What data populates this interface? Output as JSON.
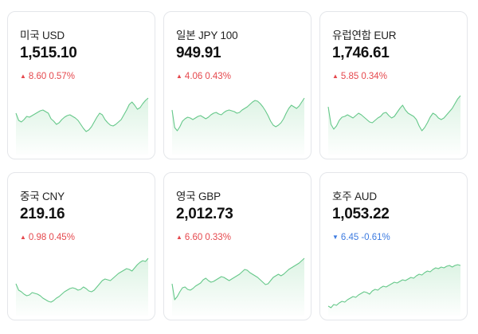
{
  "colors": {
    "up": "#e5484d",
    "down": "#3d7be0",
    "line": "#66c88a",
    "fill": "#d9f2e1"
  },
  "cards": [
    {
      "name": "미국 USD",
      "rate": "1,515.10",
      "direction": "up",
      "arrow_icon": "triangle-up-icon",
      "change": "8.60",
      "percent": "0.57%",
      "sparkline": [
        52,
        43,
        41,
        44,
        48,
        47,
        49,
        51,
        53,
        55,
        56,
        54,
        52,
        45,
        42,
        38,
        40,
        44,
        47,
        49,
        50,
        48,
        46,
        43,
        38,
        33,
        29,
        31,
        35,
        41,
        47,
        52,
        50,
        44,
        40,
        37,
        36,
        38,
        41,
        44,
        50,
        56,
        63,
        66,
        62,
        57,
        59,
        64,
        68,
        71
      ]
    },
    {
      "name": "일본 JPY 100",
      "rate": "949.91",
      "direction": "up",
      "arrow_icon": "triangle-up-icon",
      "change": "4.06",
      "percent": "0.43%",
      "sparkline": [
        56,
        34,
        30,
        35,
        42,
        45,
        47,
        46,
        44,
        46,
        48,
        49,
        47,
        45,
        47,
        50,
        52,
        53,
        51,
        50,
        53,
        55,
        56,
        55,
        54,
        52,
        53,
        56,
        58,
        60,
        63,
        66,
        68,
        67,
        64,
        60,
        55,
        49,
        42,
        37,
        35,
        37,
        40,
        45,
        52,
        58,
        62,
        60,
        58,
        61,
        66,
        71
      ]
    },
    {
      "name": "유럽연합 EUR",
      "rate": "1,746.61",
      "direction": "up",
      "arrow_icon": "triangle-up-icon",
      "change": "5.85",
      "percent": "0.34%",
      "sparkline": [
        60,
        38,
        32,
        36,
        43,
        47,
        48,
        50,
        48,
        46,
        49,
        52,
        50,
        47,
        44,
        41,
        40,
        43,
        46,
        48,
        52,
        53,
        49,
        46,
        48,
        53,
        58,
        62,
        56,
        52,
        50,
        48,
        44,
        36,
        30,
        34,
        40,
        47,
        52,
        50,
        46,
        44,
        46,
        50,
        54,
        58,
        64,
        70,
        74
      ]
    },
    {
      "name": "중국 CNY",
      "rate": "219.16",
      "direction": "up",
      "arrow_icon": "triangle-up-icon",
      "change": "0.98",
      "percent": "0.45%",
      "sparkline": [
        40,
        32,
        30,
        27,
        25,
        26,
        29,
        28,
        27,
        25,
        22,
        20,
        18,
        17,
        19,
        22,
        24,
        27,
        30,
        32,
        34,
        35,
        34,
        32,
        33,
        36,
        34,
        31,
        30,
        32,
        36,
        40,
        44,
        46,
        45,
        44,
        47,
        50,
        53,
        55,
        57,
        59,
        58,
        56,
        60,
        64,
        67,
        69,
        68,
        72
      ]
    },
    {
      "name": "영국 GBP",
      "rate": "2,012.73",
      "direction": "up",
      "arrow_icon": "triangle-up-icon",
      "change": "6.60",
      "percent": "0.33%",
      "sparkline": [
        40,
        20,
        24,
        30,
        35,
        36,
        33,
        32,
        34,
        37,
        39,
        41,
        45,
        47,
        44,
        42,
        43,
        45,
        47,
        49,
        48,
        46,
        44,
        46,
        48,
        50,
        52,
        55,
        58,
        57,
        54,
        52,
        50,
        48,
        45,
        42,
        39,
        40,
        44,
        48,
        50,
        52,
        50,
        52,
        55,
        58,
        60,
        62,
        64,
        66,
        69,
        72
      ]
    },
    {
      "name": "호주 AUD",
      "rate": "1,053.22",
      "direction": "down",
      "arrow_icon": "triangle-down-icon",
      "change": "6.45",
      "percent": "-0.61%",
      "sparkline": [
        12,
        10,
        14,
        13,
        16,
        18,
        17,
        20,
        22,
        24,
        23,
        26,
        28,
        30,
        29,
        27,
        31,
        33,
        32,
        35,
        37,
        36,
        38,
        40,
        42,
        41,
        43,
        45,
        44,
        46,
        48,
        47,
        50,
        52,
        51,
        54,
        56,
        55,
        58,
        60,
        59,
        61,
        60,
        62,
        63,
        61,
        63,
        64,
        63
      ]
    }
  ]
}
